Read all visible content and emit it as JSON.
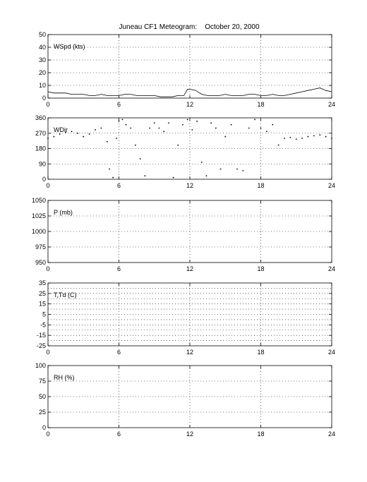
{
  "figure": {
    "title": "Juneau CF1 Meteogram:    October 20, 2000"
  },
  "chart_data": [
    {
      "type": "line",
      "label": "WSpd (kts)",
      "xlim": [
        0,
        24
      ],
      "xticks": [
        0,
        6,
        12,
        18,
        24
      ],
      "ylim": [
        0,
        50
      ],
      "yticks": [
        0,
        10,
        20,
        30,
        40,
        50
      ],
      "grid": true,
      "series": [
        {
          "x": [
            0,
            0.5,
            1,
            1.5,
            2,
            2.5,
            3,
            3.5,
            4,
            4.5,
            5,
            5.5,
            6,
            6.5,
            7,
            7.5,
            8,
            8.5,
            9,
            9.5,
            10,
            10.5,
            11,
            11.5,
            11.8,
            12,
            12.5,
            13,
            13.5,
            14,
            14.5,
            15,
            15.5,
            16,
            16.5,
            17,
            17.5,
            18,
            18.5,
            19,
            19.5,
            20,
            20.5,
            21,
            21.5,
            22,
            22.5,
            23,
            23.5,
            24
          ],
          "y": [
            5,
            4,
            4,
            4,
            3,
            3,
            3,
            2,
            2,
            3,
            2,
            2,
            2,
            3,
            3,
            2,
            2,
            2,
            2,
            1,
            1,
            1,
            2,
            2,
            7,
            7,
            6,
            3,
            2,
            2,
            2,
            3,
            2,
            2,
            2,
            3,
            3,
            2,
            2,
            3,
            2,
            2,
            3,
            4,
            5,
            6,
            7,
            8,
            6,
            5
          ]
        }
      ]
    },
    {
      "type": "scatter",
      "label": "WDir",
      "xlim": [
        0,
        24
      ],
      "xticks": [
        0,
        6,
        12,
        18,
        24
      ],
      "ylim": [
        0,
        360
      ],
      "yticks": [
        0,
        90,
        180,
        270,
        360
      ],
      "grid": true,
      "series": [
        {
          "x": [
            0,
            0.5,
            1,
            1.5,
            2,
            2.5,
            3,
            3.5,
            4,
            4.5,
            5,
            5.2,
            5.5,
            5.8,
            6,
            6.3,
            6.6,
            7,
            7.4,
            7.8,
            8.2,
            8.6,
            9,
            9.4,
            9.8,
            10.2,
            10.6,
            11,
            11.4,
            11.8,
            12.2,
            12.6,
            13,
            13.4,
            13.8,
            14.2,
            14.6,
            15,
            15.5,
            16,
            16.5,
            17,
            17.5,
            18,
            18.5,
            19,
            19.5,
            20,
            20.5,
            21,
            21.5,
            22,
            22.5,
            23,
            23.5,
            24
          ],
          "y": [
            240,
            250,
            265,
            275,
            280,
            270,
            250,
            265,
            290,
            300,
            220,
            60,
            10,
            240,
            340,
            350,
            320,
            300,
            200,
            120,
            20,
            300,
            330,
            300,
            280,
            330,
            10,
            200,
            320,
            350,
            290,
            340,
            100,
            20,
            330,
            300,
            60,
            250,
            320,
            60,
            50,
            300,
            350,
            300,
            280,
            320,
            200,
            240,
            245,
            235,
            240,
            250,
            255,
            260,
            250,
            240
          ]
        }
      ]
    },
    {
      "type": "line",
      "label": "P (mb)",
      "xlim": [
        0,
        24
      ],
      "xticks": [
        0,
        6,
        12,
        18,
        24
      ],
      "ylim": [
        950,
        1050
      ],
      "yticks": [
        950,
        975,
        1000,
        1025,
        1050
      ],
      "grid": true,
      "series": []
    },
    {
      "type": "line",
      "label": "T,Td (C)",
      "xlim": [
        0,
        24
      ],
      "xticks": [
        0,
        6,
        12,
        18,
        24
      ],
      "ylim": [
        -25,
        35
      ],
      "yticks": [
        -25,
        -15,
        -5,
        5,
        15,
        25,
        35
      ],
      "minor_yticks": [
        -20,
        -10,
        0,
        10,
        20,
        30
      ],
      "grid": true,
      "series": []
    },
    {
      "type": "line",
      "label": "RH (%)",
      "xlim": [
        0,
        24
      ],
      "xticks": [
        0,
        6,
        12,
        18,
        24
      ],
      "ylim": [
        0,
        100
      ],
      "yticks": [
        0,
        25,
        50,
        75,
        100
      ],
      "grid": true,
      "series": []
    }
  ]
}
